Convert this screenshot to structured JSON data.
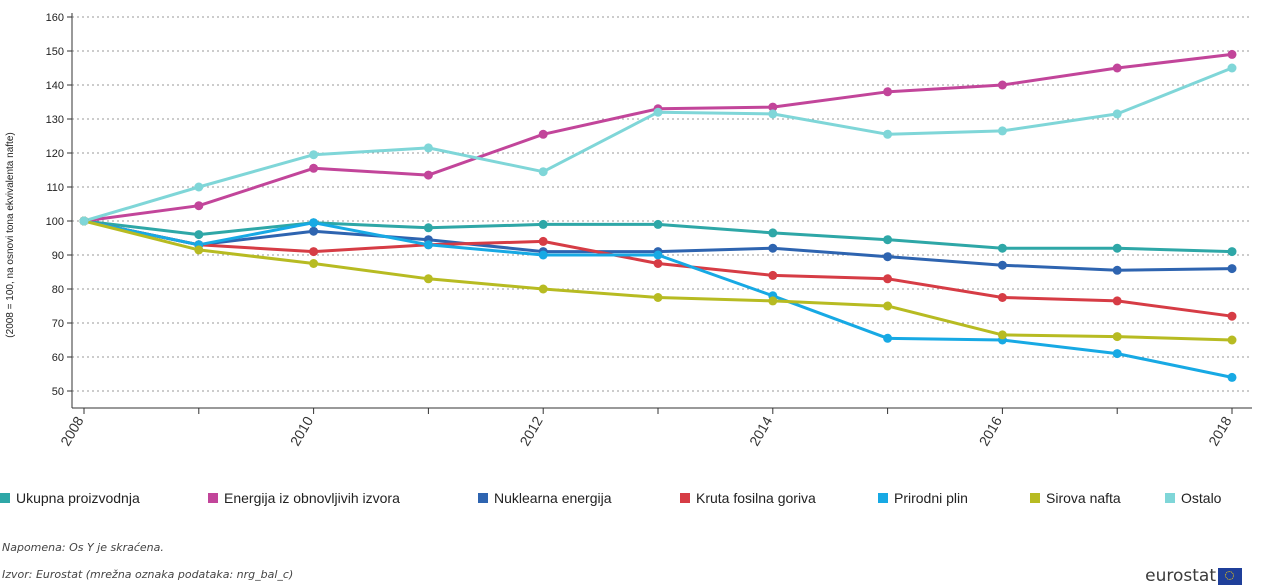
{
  "chart_data": {
    "type": "line",
    "ylabel": "(2008 = 100, na osnovi tona ekvivalenta nafte)",
    "xlabel": "",
    "ylim": [
      45,
      160
    ],
    "yticks": [
      50,
      60,
      70,
      80,
      90,
      100,
      110,
      120,
      130,
      140,
      150,
      160
    ],
    "x": [
      2008,
      2009,
      2010,
      2011,
      2012,
      2013,
      2014,
      2015,
      2016,
      2017,
      2018
    ],
    "xtick_labels": [
      "2008",
      "2010",
      "2012",
      "2014",
      "2016",
      "2018"
    ],
    "grid": "horizontal dotted",
    "legend_position": "bottom",
    "series": [
      {
        "name": "Ukupna proizvodnja",
        "color": "#2ea7a7",
        "values": [
          100,
          96,
          99.5,
          98,
          99,
          99,
          96.5,
          94.5,
          92,
          92,
          91
        ]
      },
      {
        "name": "Energija iz obnovljivih izvora",
        "color": "#c2459a",
        "values": [
          100,
          104.5,
          115.5,
          113.5,
          125.5,
          133,
          133.5,
          138,
          140,
          145,
          149
        ]
      },
      {
        "name": "Nuklearna energija",
        "color": "#2e64b0",
        "values": [
          100,
          93,
          97,
          94.5,
          91,
          91,
          92,
          89.5,
          87,
          85.5,
          86
        ]
      },
      {
        "name": "Kruta fosilna goriva",
        "color": "#d63c45",
        "values": [
          100,
          93,
          91,
          93,
          94,
          87.5,
          84,
          83,
          77.5,
          76.5,
          72
        ]
      },
      {
        "name": "Prirodni plin",
        "color": "#17a9e4",
        "values": [
          100,
          93,
          99.5,
          93,
          90,
          90,
          78,
          65.5,
          65,
          61,
          54
        ]
      },
      {
        "name": "Sirova nafta",
        "color": "#b7bb22",
        "values": [
          100,
          91.5,
          87.5,
          83,
          80,
          77.5,
          76.5,
          75,
          66.5,
          66,
          65
        ]
      },
      {
        "name": "Ostalo",
        "color": "#7fd6d8",
        "values": [
          100,
          110,
          119.5,
          121.5,
          114.5,
          132,
          131.5,
          125.5,
          126.5,
          131.5,
          145
        ]
      }
    ]
  },
  "notes": {
    "napomena": "Napomena: Os Y je skraćena.",
    "izvor": "Izvor: Eurostat (mrežna oznaka podataka: nrg_bal_c)"
  },
  "logo": {
    "text": "eurostat"
  }
}
